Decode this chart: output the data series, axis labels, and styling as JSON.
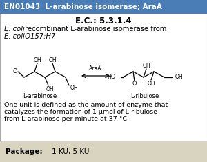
{
  "header_bg": "#4a7db5",
  "header_text_color": "#ffffff",
  "header_text": "EN01043  L-arabinose isomerase; AraA",
  "ec_number": "E.C.: 5.3.1.4",
  "unit_text_line1": "One unit is defined as the amount of enzyme that",
  "unit_text_line2": "catalyzes the formation of 1 μmol of L-ribulose",
  "unit_text_line3": "from L-arabinose per minute at 37 °C.",
  "package_label": "Package:",
  "package_value": "1 KU, 5 KU",
  "package_bg": "#d8d4bf",
  "main_bg": "#ffffff",
  "body_text_color": "#000000",
  "border_color": "#aaaaaa"
}
